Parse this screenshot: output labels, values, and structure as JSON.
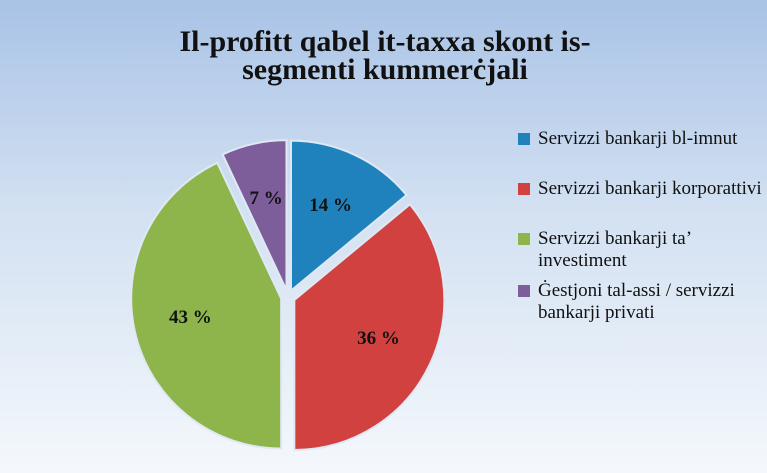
{
  "chart_data": {
    "type": "pie",
    "title": "Il-profitt qabel it-taxxa skont is-segmenti kummerċjali",
    "categories": [
      "Servizzi bankarji bl-imnut",
      "Servizzi bankarji korporattivi",
      "Servizzi bankarji ta’ investiment",
      "Ġestjoni tal-assi / servizzi bankarji privati"
    ],
    "values": [
      14,
      36,
      43,
      7
    ],
    "value_labels": [
      "14 %",
      "36 %",
      "43 %",
      "7 %"
    ],
    "colors": [
      "#1f82bd",
      "#d0413f",
      "#8db54b",
      "#7d5e9b"
    ],
    "legend": "right"
  }
}
